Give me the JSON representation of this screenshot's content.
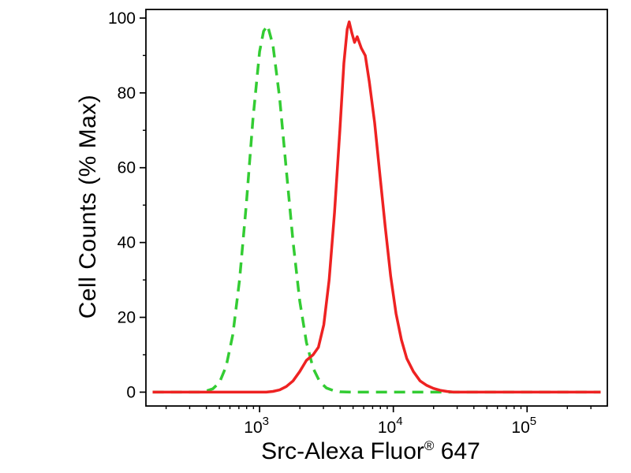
{
  "figure": {
    "background_color": "#ffffff",
    "frame_color": "#000000"
  },
  "chart_data": {
    "type": "line",
    "subtype": "flow-cytometry-histogram",
    "title": "",
    "xlabel": "Src-Alexa Fluor® 647",
    "xlabel_main": "Src-Alexa Fluor",
    "xlabel_sup": "®",
    "xlabel_tail": " 647",
    "ylabel": "Cell Counts (% Max)",
    "x_scale": "log10",
    "x_tick_base": "10",
    "x_domain_log10": [
      2.15,
      5.6
    ],
    "y_domain": [
      -3.7,
      102.3
    ],
    "x_major_tick_exponents": [
      3,
      4,
      5
    ],
    "y_major_ticks": [
      0,
      20,
      40,
      60,
      80,
      100
    ],
    "y_minor_ticks": [
      10,
      30,
      50,
      70,
      90
    ],
    "grid": false,
    "legend": "none",
    "series": [
      {
        "id": "green-dashed",
        "name": "green dashed curve",
        "color": "#33cc33",
        "dash": [
          14,
          9
        ],
        "width": 3.5,
        "points_log10x_y": [
          [
            2.2,
            0
          ],
          [
            2.55,
            0
          ],
          [
            2.6,
            0.3
          ],
          [
            2.65,
            0.9
          ],
          [
            2.7,
            2.6
          ],
          [
            2.75,
            6.9
          ],
          [
            2.8,
            15.4
          ],
          [
            2.85,
            30
          ],
          [
            2.9,
            50
          ],
          [
            2.95,
            73
          ],
          [
            3.0,
            91
          ],
          [
            3.03,
            96.5
          ],
          [
            3.06,
            98
          ],
          [
            3.1,
            92.7
          ],
          [
            3.15,
            78.5
          ],
          [
            3.2,
            59.4
          ],
          [
            3.25,
            40.3
          ],
          [
            3.3,
            24.4
          ],
          [
            3.35,
            13.3
          ],
          [
            3.4,
            6.4
          ],
          [
            3.45,
            2.8
          ],
          [
            3.5,
            1.1
          ],
          [
            3.55,
            0.45
          ],
          [
            3.6,
            0.1
          ],
          [
            3.7,
            0
          ],
          [
            5.55,
            0
          ]
        ]
      },
      {
        "id": "red-solid",
        "name": "red solid curve",
        "color": "#ee2222",
        "dash": null,
        "width": 3.5,
        "points_log10x_y": [
          [
            2.2,
            0
          ],
          [
            3.05,
            0
          ],
          [
            3.1,
            0.2
          ],
          [
            3.15,
            0.6
          ],
          [
            3.2,
            1.5
          ],
          [
            3.25,
            3
          ],
          [
            3.3,
            5.5
          ],
          [
            3.35,
            8.5
          ],
          [
            3.4,
            10
          ],
          [
            3.44,
            12
          ],
          [
            3.48,
            18
          ],
          [
            3.52,
            30
          ],
          [
            3.56,
            48
          ],
          [
            3.6,
            70
          ],
          [
            3.63,
            88
          ],
          [
            3.655,
            97
          ],
          [
            3.67,
            99
          ],
          [
            3.69,
            96
          ],
          [
            3.71,
            93.5
          ],
          [
            3.73,
            95
          ],
          [
            3.76,
            92
          ],
          [
            3.79,
            90
          ],
          [
            3.82,
            83
          ],
          [
            3.86,
            72
          ],
          [
            3.9,
            58
          ],
          [
            3.94,
            44
          ],
          [
            3.98,
            31
          ],
          [
            4.02,
            21
          ],
          [
            4.06,
            14
          ],
          [
            4.1,
            9
          ],
          [
            4.15,
            5.5
          ],
          [
            4.2,
            3
          ],
          [
            4.25,
            1.8
          ],
          [
            4.3,
            1
          ],
          [
            4.35,
            0.5
          ],
          [
            4.4,
            0.2
          ],
          [
            4.45,
            0
          ],
          [
            5.55,
            0
          ]
        ]
      }
    ]
  }
}
